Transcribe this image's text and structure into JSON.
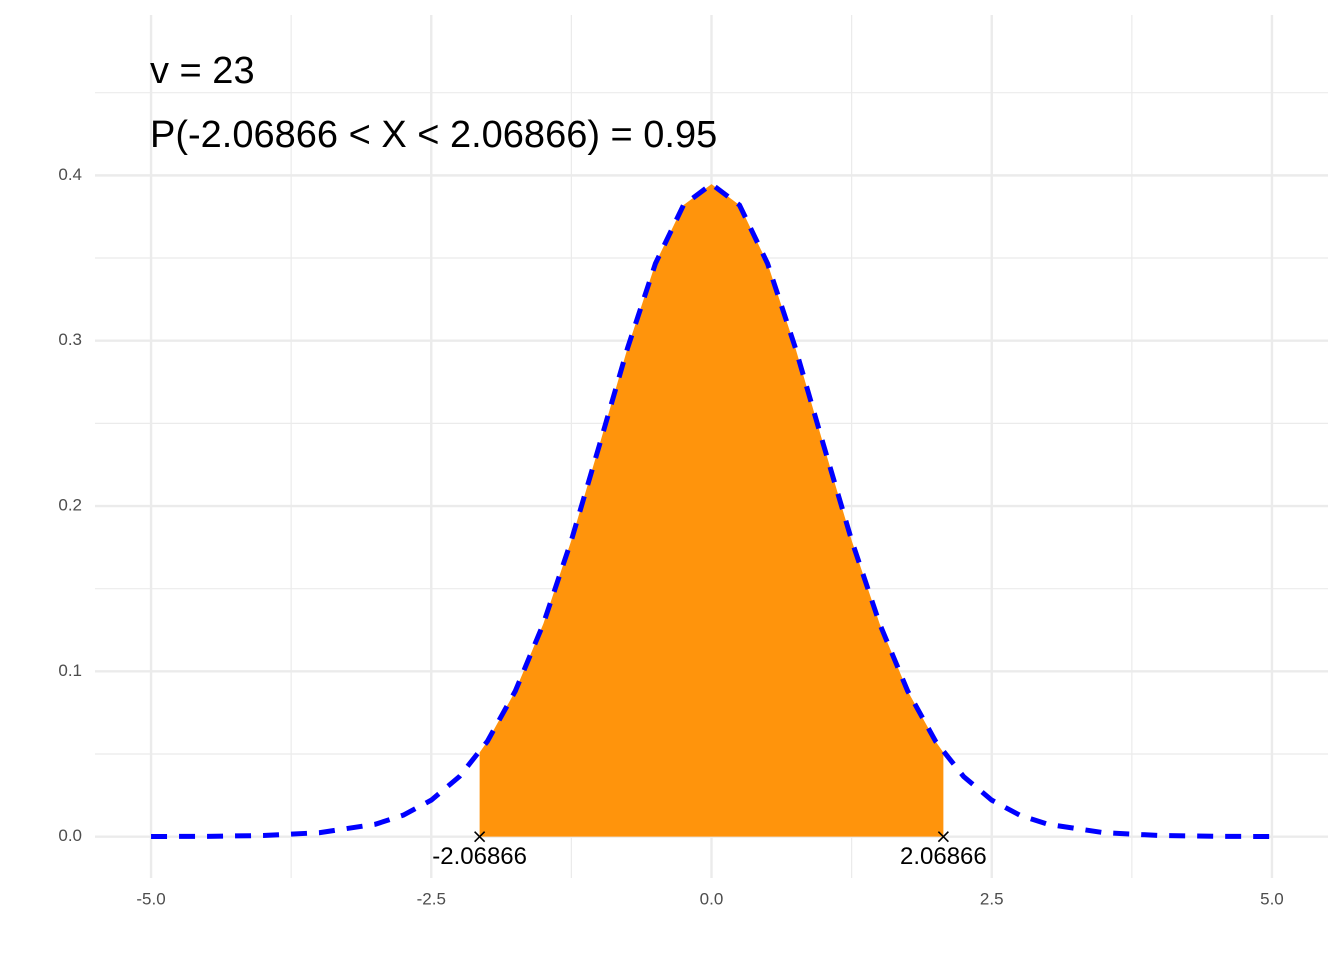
{
  "chart_data": {
    "type": "density",
    "annotations": [
      "v = 23",
      "P(-2.06866 < X < 2.06866) = 0.95"
    ],
    "xlim": [
      -5.5,
      5.5
    ],
    "ylim": [
      -0.025,
      0.497
    ],
    "xticks": [
      {
        "value": -5,
        "label": "-5.0"
      },
      {
        "value": -2.5,
        "label": "-2.5"
      },
      {
        "value": 0,
        "label": "0.0"
      },
      {
        "value": 2.5,
        "label": "2.5"
      },
      {
        "value": 5,
        "label": "5.0"
      }
    ],
    "yticks": [
      {
        "value": 0,
        "label": "0.0"
      },
      0.1,
      0.2,
      0.3,
      0.4
    ],
    "minor_xticks": [
      -3.75,
      -1.25,
      1.25,
      3.75
    ],
    "minor_yticks": [
      0.05,
      0.15,
      0.25,
      0.35,
      0.45
    ],
    "grid": true,
    "series": [
      {
        "kind": "line",
        "color": "#0000ff",
        "dashed": true,
        "x": [
          -5,
          -4.5,
          -4,
          -3.5,
          -3,
          -2.75,
          -2.5,
          -2.25,
          -2,
          -1.75,
          -1.5,
          -1.25,
          -1,
          -0.75,
          -0.5,
          -0.25,
          0,
          0.25,
          0.5,
          0.75,
          1,
          1.25,
          1.5,
          1.75,
          2,
          2.25,
          2.5,
          2.75,
          3,
          3.5,
          4,
          4.5,
          5
        ],
        "values": [
          0.0001,
          0.0002,
          0.0007,
          0.0024,
          0.0075,
          0.013,
          0.0221,
          0.0363,
          0.0576,
          0.0881,
          0.1288,
          0.1793,
          0.2368,
          0.2953,
          0.3467,
          0.382,
          0.3947,
          0.382,
          0.3467,
          0.2953,
          0.2368,
          0.1793,
          0.1288,
          0.0881,
          0.0576,
          0.0363,
          0.0221,
          0.013,
          0.0075,
          0.0024,
          0.0007,
          0.0002,
          0.0001
        ]
      },
      {
        "kind": "area",
        "color": "#ff940c",
        "x": [
          -2.06866,
          -2,
          -1.75,
          -1.5,
          -1.25,
          -1,
          -0.75,
          -0.5,
          -0.25,
          0,
          0.25,
          0.5,
          0.75,
          1,
          1.25,
          1.5,
          1.75,
          2,
          2.06866
        ],
        "values": [
          0.0509,
          0.0576,
          0.0881,
          0.1288,
          0.1793,
          0.2368,
          0.2953,
          0.3467,
          0.382,
          0.3947,
          0.382,
          0.3467,
          0.2953,
          0.2368,
          0.1793,
          0.1288,
          0.0881,
          0.0576,
          0.0509
        ]
      }
    ],
    "points": {
      "x": [
        -2.06866,
        2.06866
      ],
      "y": [
        0,
        0
      ]
    }
  }
}
